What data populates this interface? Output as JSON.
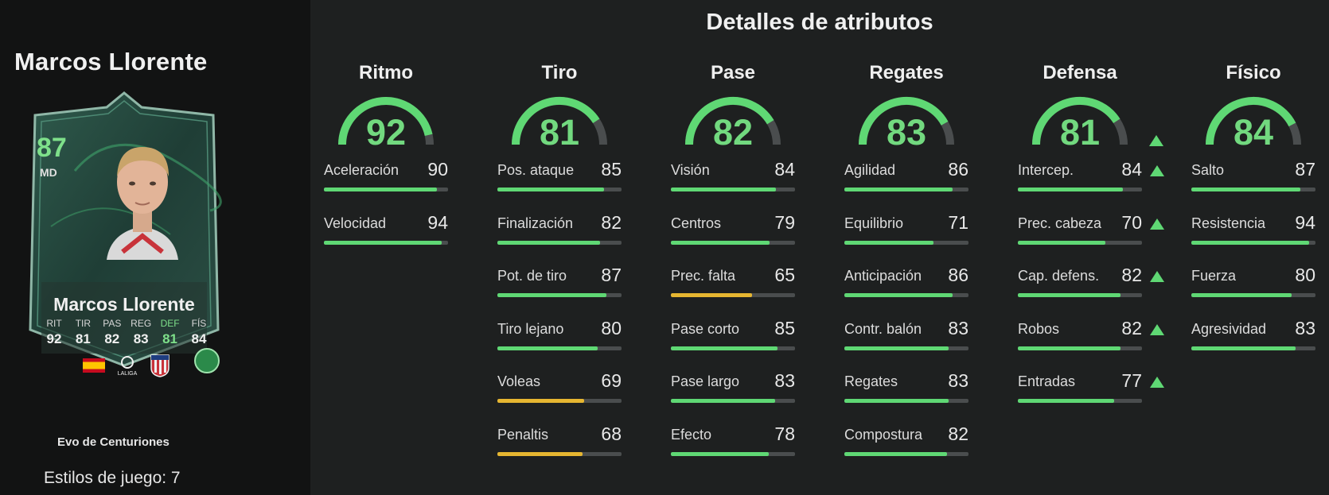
{
  "player": {
    "name": "Marcos Llorente",
    "rating": "87",
    "position": "MD",
    "card_stats": [
      {
        "label": "RIT",
        "value": "92"
      },
      {
        "label": "TIR",
        "value": "81"
      },
      {
        "label": "PAS",
        "value": "82"
      },
      {
        "label": "REG",
        "value": "83"
      },
      {
        "label": "DEF",
        "value": "81",
        "highlight": true
      },
      {
        "label": "FÍS",
        "value": "84"
      }
    ],
    "league_label": "LALIGA",
    "evo_name": "Evo de Centuriones",
    "playstyles_label": "Estilos de juego: 7"
  },
  "colors": {
    "green": "#5fd874",
    "yellow": "#e6b631",
    "track": "#4a4d4e"
  },
  "page_title": "Detalles de atributos",
  "categories": [
    {
      "name": "Ritmo",
      "value": 92,
      "upgraded": false,
      "attributes": [
        {
          "label": "Aceleración",
          "value": 90
        },
        {
          "label": "Velocidad",
          "value": 94
        }
      ]
    },
    {
      "name": "Tiro",
      "value": 81,
      "upgraded": false,
      "attributes": [
        {
          "label": "Pos. ataque",
          "value": 85
        },
        {
          "label": "Finalización",
          "value": 82
        },
        {
          "label": "Pot. de tiro",
          "value": 87
        },
        {
          "label": "Tiro lejano",
          "value": 80
        },
        {
          "label": "Voleas",
          "value": 69
        },
        {
          "label": "Penaltis",
          "value": 68
        }
      ]
    },
    {
      "name": "Pase",
      "value": 82,
      "upgraded": false,
      "attributes": [
        {
          "label": "Visión",
          "value": 84
        },
        {
          "label": "Centros",
          "value": 79
        },
        {
          "label": "Prec. falta",
          "value": 65
        },
        {
          "label": "Pase corto",
          "value": 85
        },
        {
          "label": "Pase largo",
          "value": 83
        },
        {
          "label": "Efecto",
          "value": 78
        }
      ]
    },
    {
      "name": "Regates",
      "value": 83,
      "upgraded": false,
      "attributes": [
        {
          "label": "Agilidad",
          "value": 86
        },
        {
          "label": "Equilibrio",
          "value": 71
        },
        {
          "label": "Anticipación",
          "value": 86
        },
        {
          "label": "Contr. balón",
          "value": 83
        },
        {
          "label": "Regates",
          "value": 83
        },
        {
          "label": "Compostura",
          "value": 82
        }
      ]
    },
    {
      "name": "Defensa",
      "value": 81,
      "upgraded": true,
      "attributes": [
        {
          "label": "Intercep.",
          "value": 84,
          "upgraded": true
        },
        {
          "label": "Prec. cabeza",
          "value": 70,
          "upgraded": true
        },
        {
          "label": "Cap. defens.",
          "value": 82,
          "upgraded": true
        },
        {
          "label": "Robos",
          "value": 82,
          "upgraded": true
        },
        {
          "label": "Entradas",
          "value": 77,
          "upgraded": true
        }
      ]
    },
    {
      "name": "Físico",
      "value": 84,
      "upgraded": false,
      "attributes": [
        {
          "label": "Salto",
          "value": 87
        },
        {
          "label": "Resistencia",
          "value": 94
        },
        {
          "label": "Fuerza",
          "value": 80
        },
        {
          "label": "Agresividad",
          "value": 83
        }
      ]
    }
  ]
}
